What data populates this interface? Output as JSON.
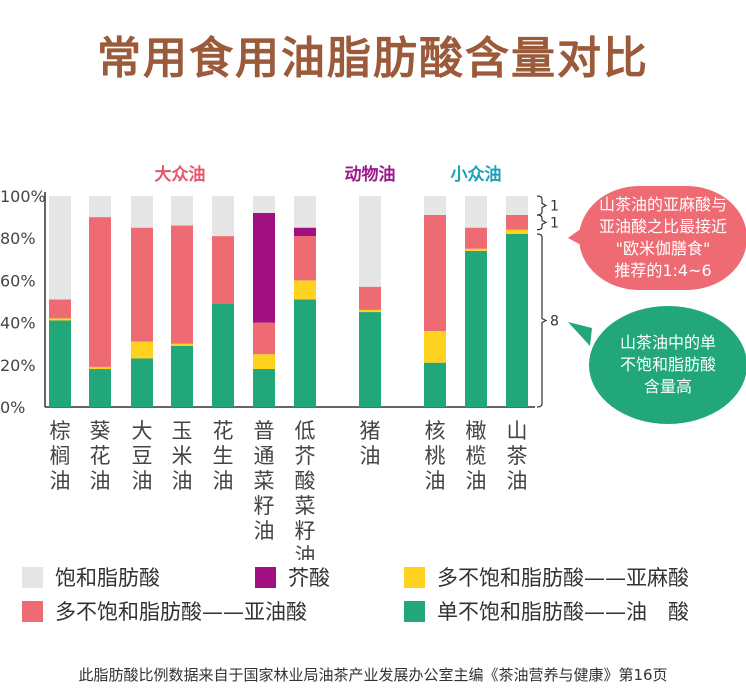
{
  "title": "常用食用油脂肪酸含量对比",
  "chart_data": {
    "type": "bar",
    "stacked": true,
    "ylim": [
      0,
      100
    ],
    "y_ticks": [
      "0%",
      "20%",
      "40%",
      "60%",
      "80%",
      "100%"
    ],
    "categories": [
      "棕榈油",
      "葵花油",
      "大豆油",
      "玉米油",
      "花生油",
      "普通菜籽油",
      "低芥酸菜籽油",
      "猪油",
      "核桃油",
      "橄榄油",
      "山茶油"
    ],
    "groups": [
      {
        "label": "大众油",
        "color": "#e8566a",
        "categories": [
          "棕榈油",
          "葵花油",
          "大豆油",
          "玉米油",
          "花生油",
          "普通菜籽油",
          "低芥酸菜籽油"
        ]
      },
      {
        "label": "动物油",
        "color": "#9c1a8c",
        "categories": [
          "猪油"
        ]
      },
      {
        "label": "小众油",
        "color": "#1aa3b8",
        "categories": [
          "核桃油",
          "橄榄油",
          "山茶油"
        ]
      }
    ],
    "series": [
      {
        "name": "单不饱和脂肪酸——油　酸",
        "color": "#22a77a",
        "values": [
          41,
          18,
          23,
          29,
          49,
          18,
          51,
          45,
          21,
          74,
          82
        ]
      },
      {
        "name": "多不饱和脂肪酸——亚麻酸",
        "color": "#ffd21f",
        "values": [
          1,
          1,
          8,
          1,
          0,
          7,
          9,
          1,
          15,
          1,
          2
        ]
      },
      {
        "name": "多不饱和脂肪酸——亚油酸",
        "color": "#ee6b74",
        "values": [
          9,
          71,
          54,
          56,
          32,
          15,
          21,
          11,
          55,
          10,
          7
        ]
      },
      {
        "name": "芥酸",
        "color": "#a0117f",
        "values": [
          0,
          0,
          0,
          0,
          0,
          52,
          4,
          0,
          0,
          0,
          0
        ]
      },
      {
        "name": "饱和脂肪酸",
        "color": "#e6e6e6",
        "values": [
          49,
          10,
          15,
          14,
          19,
          8,
          15,
          43,
          9,
          15,
          9
        ]
      }
    ],
    "legend_order": [
      "饱和脂肪酸",
      "芥酸",
      "多不饱和脂肪酸——亚麻酸",
      "多不饱和脂肪酸——亚油酸",
      "单不饱和脂肪酸——油　酸"
    ],
    "annotations": {
      "bracket_labels": [
        "1",
        "1",
        "8"
      ],
      "bubble_top": [
        "山茶油的亚麻酸与",
        "亚油酸之比最接近",
        "\"欧米伽膳食\"",
        "推荐的1:4~6"
      ],
      "bubble_bottom": [
        "山茶油中的单",
        "不饱和脂肪酸",
        "含量高"
      ]
    }
  },
  "source": "此脂肪酸比例数据来自于国家林业局油茶产业发展办公室主编《茶油营养与健康》第16页"
}
